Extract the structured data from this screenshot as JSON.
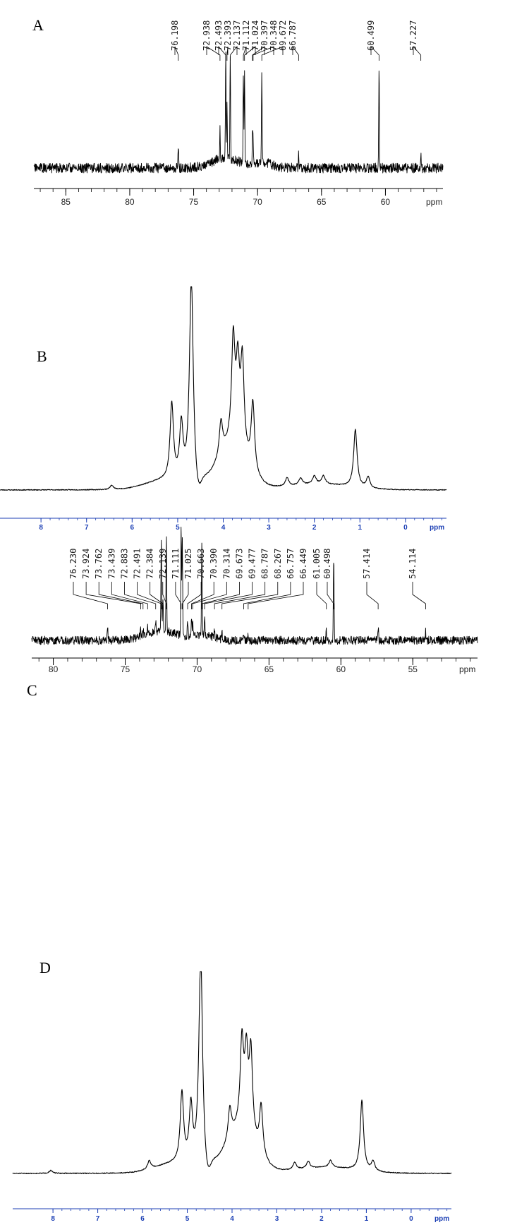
{
  "chart_data": [
    {
      "type": "line",
      "panel_label": "A",
      "x_unit": "ppm",
      "xlim": [
        87.5,
        55.5
      ],
      "x_ticks": [
        85,
        80,
        75,
        70,
        65,
        60
      ],
      "axis_color": "#000000",
      "peak_labels": [
        "76.198",
        "72.938",
        "72.493",
        "72.393",
        "72.137",
        "71.112",
        "71.024",
        "70.397",
        "70.348",
        "69.672",
        "66.787",
        "60.499",
        "57.227"
      ],
      "peaks": [
        {
          "x": 76.2,
          "h": 0.16
        },
        {
          "x": 72.94,
          "h": 0.24
        },
        {
          "x": 72.49,
          "h": 0.86
        },
        {
          "x": 72.39,
          "h": 0.42
        },
        {
          "x": 72.14,
          "h": 0.86
        },
        {
          "x": 71.11,
          "h": 0.74
        },
        {
          "x": 71.02,
          "h": 0.74
        },
        {
          "x": 70.4,
          "h": 0.22
        },
        {
          "x": 70.35,
          "h": 0.2
        },
        {
          "x": 69.67,
          "h": 0.74
        },
        {
          "x": 66.79,
          "h": 0.14
        },
        {
          "x": 60.5,
          "h": 0.82
        },
        {
          "x": 57.23,
          "h": 0.1
        }
      ]
    },
    {
      "type": "line",
      "panel_label": "B",
      "x_unit": "ppm",
      "xlim": [
        8.9,
        -0.9
      ],
      "x_ticks": [
        8,
        7,
        6,
        5,
        4,
        3,
        2,
        1,
        0
      ],
      "axis_color": "#1c3fb4",
      "peaks": [
        {
          "x": 4.7,
          "h": 1.5
        },
        {
          "x": 5.13,
          "h": 0.55
        },
        {
          "x": 4.92,
          "h": 0.4
        },
        {
          "x": 3.78,
          "h": 0.75
        },
        {
          "x": 3.68,
          "h": 0.55
        },
        {
          "x": 3.58,
          "h": 0.65
        },
        {
          "x": 3.35,
          "h": 0.5
        },
        {
          "x": 4.05,
          "h": 0.25
        },
        {
          "x": 1.1,
          "h": 0.42
        },
        {
          "x": 0.82,
          "h": 0.08
        },
        {
          "x": 2.6,
          "h": 0.06
        },
        {
          "x": 2.3,
          "h": 0.05
        },
        {
          "x": 2.0,
          "h": 0.06
        },
        {
          "x": 1.8,
          "h": 0.06
        },
        {
          "x": 6.45,
          "h": 0.03
        }
      ]
    },
    {
      "type": "line",
      "panel_label": "C",
      "x_unit": "ppm",
      "xlim": [
        81.5,
        50.5
      ],
      "x_ticks": [
        80,
        75,
        70,
        65,
        60,
        55
      ],
      "axis_color": "#000000",
      "peak_labels": [
        "76.230",
        "73.924",
        "73.762",
        "73.439",
        "72.883",
        "72.491",
        "72.384",
        "72.139",
        "71.111",
        "71.025",
        "70.663",
        "70.390",
        "70.314",
        "69.673",
        "69.477",
        "68.787",
        "68.267",
        "66.757",
        "66.449",
        "61.005",
        "60.498",
        "57.414",
        "54.114"
      ],
      "peaks": [
        {
          "x": 76.23,
          "h": 0.12
        },
        {
          "x": 73.92,
          "h": 0.05
        },
        {
          "x": 73.76,
          "h": 0.05
        },
        {
          "x": 73.44,
          "h": 0.06
        },
        {
          "x": 72.88,
          "h": 0.1
        },
        {
          "x": 72.49,
          "h": 0.8
        },
        {
          "x": 72.38,
          "h": 0.3
        },
        {
          "x": 72.14,
          "h": 0.8
        },
        {
          "x": 71.11,
          "h": 0.9
        },
        {
          "x": 71.03,
          "h": 0.8
        },
        {
          "x": 70.66,
          "h": 0.12
        },
        {
          "x": 70.39,
          "h": 0.16
        },
        {
          "x": 70.31,
          "h": 0.12
        },
        {
          "x": 69.67,
          "h": 0.78
        },
        {
          "x": 69.48,
          "h": 0.18
        },
        {
          "x": 68.79,
          "h": 0.06
        },
        {
          "x": 68.27,
          "h": 0.06
        },
        {
          "x": 66.76,
          "h": 0.06
        },
        {
          "x": 66.45,
          "h": 0.05
        },
        {
          "x": 61.01,
          "h": 0.08
        },
        {
          "x": 60.5,
          "h": 0.72
        },
        {
          "x": 57.41,
          "h": 0.12
        },
        {
          "x": 54.11,
          "h": 0.07
        }
      ]
    },
    {
      "type": "line",
      "panel_label": "D",
      "x_unit": "ppm",
      "xlim": [
        8.9,
        -0.9
      ],
      "x_ticks": [
        8,
        7,
        6,
        5,
        4,
        3,
        2,
        1,
        0
      ],
      "axis_color": "#1c3fb4",
      "peaks": [
        {
          "x": 4.7,
          "h": 1.5
        },
        {
          "x": 5.12,
          "h": 0.5
        },
        {
          "x": 4.92,
          "h": 0.4
        },
        {
          "x": 3.78,
          "h": 0.6
        },
        {
          "x": 3.68,
          "h": 0.5
        },
        {
          "x": 3.58,
          "h": 0.58
        },
        {
          "x": 3.35,
          "h": 0.35
        },
        {
          "x": 4.05,
          "h": 0.22
        },
        {
          "x": 1.1,
          "h": 0.5
        },
        {
          "x": 0.85,
          "h": 0.07
        },
        {
          "x": 5.85,
          "h": 0.06
        },
        {
          "x": 2.6,
          "h": 0.05
        },
        {
          "x": 2.3,
          "h": 0.05
        },
        {
          "x": 1.8,
          "h": 0.05
        },
        {
          "x": 8.05,
          "h": 0.02
        }
      ]
    }
  ]
}
